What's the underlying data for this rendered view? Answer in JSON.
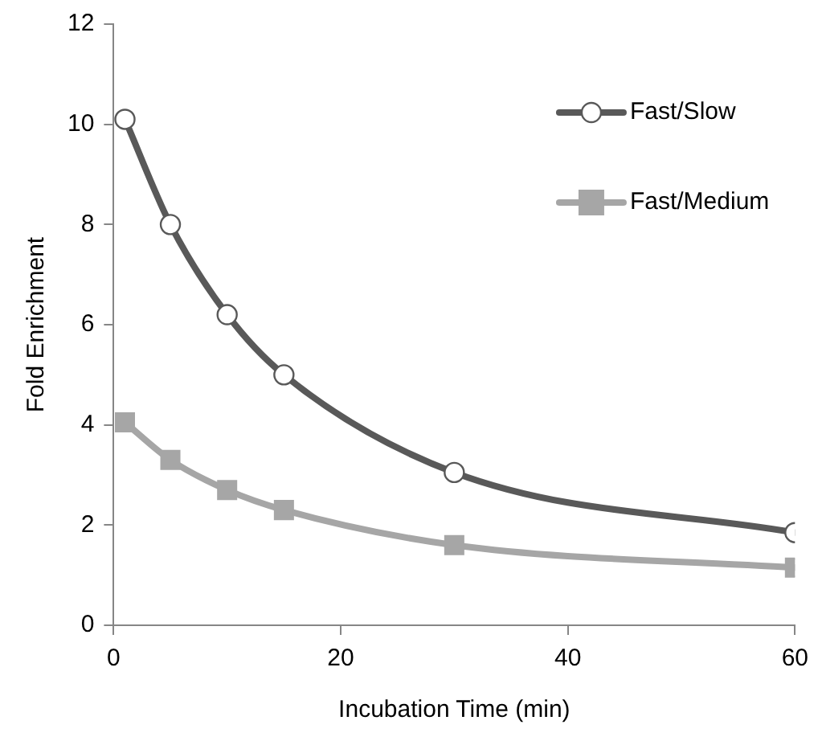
{
  "chart_data": {
    "type": "line",
    "xlabel": "Incubation Time (min)",
    "ylabel": "Fold Enrichment",
    "xlim": [
      0,
      60
    ],
    "xticks": [
      0,
      20,
      40,
      60
    ],
    "ylim": [
      0,
      12
    ],
    "yticks": [
      0,
      2,
      4,
      6,
      8,
      10,
      12
    ],
    "grid": false,
    "legend": "top right",
    "line_style": "solid",
    "x": [
      1,
      5,
      10,
      15,
      30,
      60
    ],
    "series": [
      {
        "name": "Fast/Slow",
        "color": "#595959",
        "marker": "circle",
        "values": [
          10.1,
          8.0,
          6.2,
          5.0,
          3.05,
          1.85
        ]
      },
      {
        "name": "Fast/Medium",
        "color": "#a6a6a6",
        "marker": "square",
        "values": [
          4.05,
          3.3,
          2.7,
          2.3,
          1.6,
          1.15
        ]
      }
    ]
  }
}
